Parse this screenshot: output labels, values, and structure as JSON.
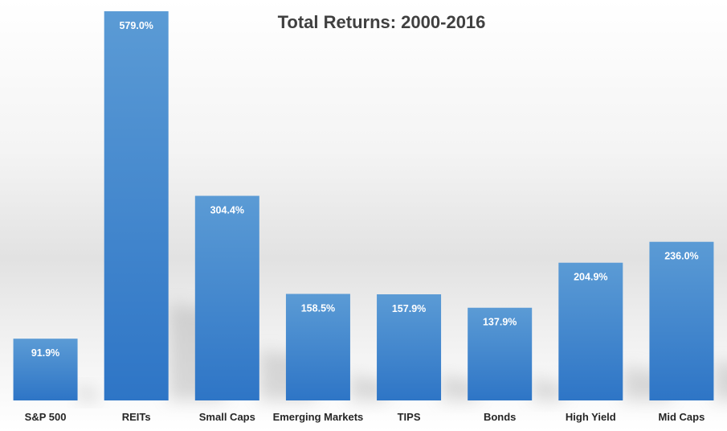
{
  "chart_data": {
    "type": "bar",
    "title": "Total Returns: 2000-2016",
    "categories": [
      "S&P 500",
      "REITs",
      "Small Caps",
      "Emerging Markets",
      "TIPS",
      "Bonds",
      "High Yield",
      "Mid Caps"
    ],
    "values": [
      91.9,
      579.0,
      304.4,
      158.5,
      157.9,
      137.9,
      204.9,
      236.0
    ],
    "data_labels": [
      "91.9%",
      "579.0%",
      "304.4%",
      "158.5%",
      "157.9%",
      "137.9%",
      "204.9%",
      "236.0%"
    ],
    "ylim": [
      0,
      579
    ],
    "grid": false,
    "legend": "none",
    "bar_color_top": "#5b9bd5",
    "bar_color_bottom": "#2e75c6"
  }
}
